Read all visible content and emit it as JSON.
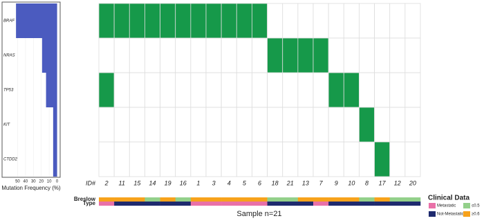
{
  "chart_data": {
    "type": "oncoprint",
    "genes": [
      "BRAF",
      "NRAS",
      "TP53",
      "KIT",
      "CTDD2"
    ],
    "frequency": {
      "values": [
        52,
        19,
        14,
        5,
        5
      ],
      "color": "#4b5bbf",
      "xlim": [
        60,
        -3
      ],
      "xticks": [
        50,
        40,
        30,
        20,
        10,
        0
      ],
      "x_label": "Mutation Frequency (%)"
    },
    "id_label": "ID#",
    "ids": [
      "2",
      "11",
      "15",
      "14",
      "19",
      "16",
      "1",
      "3",
      "4",
      "5",
      "6",
      "18",
      "21",
      "13",
      "7",
      "9",
      "10",
      "8",
      "17",
      "12",
      "20"
    ],
    "mutation_color": "#16994a",
    "mutations": [
      [
        1,
        1,
        1,
        1,
        1,
        1,
        1,
        1,
        1,
        1,
        1,
        0,
        0,
        0,
        0,
        0,
        0,
        0,
        0,
        0,
        0
      ],
      [
        0,
        0,
        0,
        0,
        0,
        0,
        0,
        0,
        0,
        0,
        0,
        1,
        1,
        1,
        1,
        0,
        0,
        0,
        0,
        0,
        0
      ],
      [
        1,
        0,
        0,
        0,
        0,
        0,
        0,
        0,
        0,
        0,
        0,
        0,
        0,
        0,
        0,
        1,
        1,
        0,
        0,
        0,
        0
      ],
      [
        0,
        0,
        0,
        0,
        0,
        0,
        0,
        0,
        0,
        0,
        0,
        0,
        0,
        0,
        0,
        0,
        0,
        1,
        0,
        0,
        0
      ],
      [
        0,
        0,
        0,
        0,
        0,
        0,
        0,
        0,
        0,
        0,
        0,
        0,
        0,
        0,
        0,
        0,
        0,
        0,
        1,
        0,
        0
      ]
    ],
    "clinical": {
      "title": "Clinical Data",
      "tracks": [
        {
          "name": "Breslow",
          "values": [
            "≥0.6",
            "≥0.6",
            "≥0.6",
            "≤0.5",
            "≥0.6",
            "≤0.5",
            "≥0.6",
            "≥0.6",
            "≥0.6",
            "≥0.6",
            "≥0.6",
            "≤0.5",
            "≤0.5",
            "≥0.6",
            "≥0.6",
            "≥0.6",
            "≥0.6",
            "≤0.5",
            "≥0.6",
            "≤0.5",
            "≤0.5"
          ]
        },
        {
          "name": "Type",
          "values": [
            "Metastatic",
            "Not-Metastatic",
            "Not-Metastatic",
            "Not-Metastatic",
            "Not-Metastatic",
            "Not-Metastatic",
            "Metastatic",
            "Metastatic",
            "Metastatic",
            "Metastatic",
            "Metastatic",
            "Not-Metastatic",
            "Not-Metastatic",
            "Not-Metastatic",
            "Metastatic",
            "Not-Metastatic",
            "Not-Metastatic",
            "Not-Metastatic",
            "Not-Metastatic",
            "Not-Metastatic",
            "Not-Metastatic"
          ]
        }
      ],
      "legend": [
        {
          "name": "Metastatic",
          "color": "#e971a8"
        },
        {
          "name": "Not-Metastatic",
          "color": "#1e2a6e"
        },
        {
          "name": "≤0.5",
          "color": "#93d08a"
        },
        {
          "name": "≥0.6",
          "color": "#f7a21b"
        }
      ]
    },
    "footer": "Sample n=21"
  }
}
